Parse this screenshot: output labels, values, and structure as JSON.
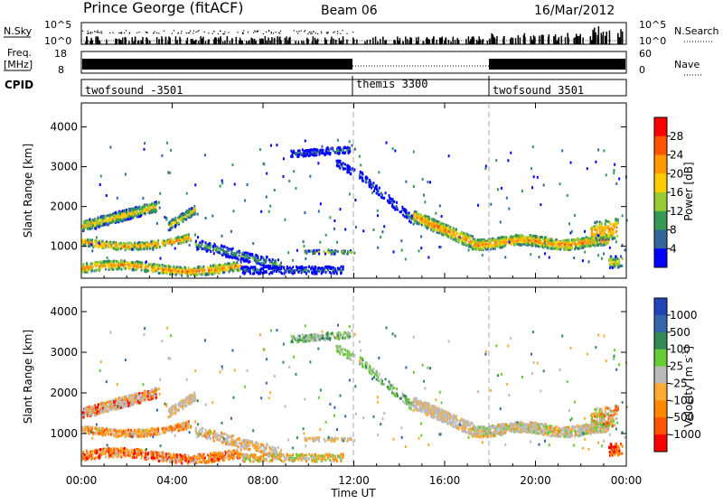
{
  "header": {
    "title": "Prince George (fitACF)",
    "beam": "Beam 06",
    "date": "16/Mar/2012"
  },
  "panels": {
    "nsky": {
      "left_label": "N.Sky",
      "right_label": "N.Search",
      "tick_top": "10^5",
      "tick_bottom": "10^0"
    },
    "freq": {
      "left_label_1": "Freq.",
      "left_label_2": "[MHz]",
      "tick_top": "18",
      "tick_bottom": "8",
      "right_label": "Nave",
      "right_tick_top": "60",
      "right_tick_bottom": "0"
    },
    "cpid": {
      "label": "CPID",
      "segments": [
        "twofsound -3501",
        "themis 3300",
        "twofsound 3501"
      ]
    }
  },
  "chart_data": [
    {
      "type": "heatmap",
      "name": "power",
      "ylabel": "Slant Range [km]",
      "xlabel": "Time UT",
      "x_ticks": [
        "00:00",
        "04:00",
        "08:00",
        "12:00",
        "16:00",
        "20:00",
        "00:00"
      ],
      "y_ticks": [
        1000,
        2000,
        3000,
        4000
      ],
      "ylim": [
        200,
        4600
      ],
      "xlim_hours": [
        0,
        24
      ],
      "colorbar": {
        "label": "Power [dB]",
        "ticks": [
          "28",
          "24",
          "20",
          "16",
          "12",
          "8",
          "4"
        ],
        "colors": [
          "#ff0000",
          "#ff5500",
          "#ff9900",
          "#ffcc00",
          "#99cc33",
          "#339955",
          "#336699",
          "#0000ff"
        ]
      }
    },
    {
      "type": "heatmap",
      "name": "velocity",
      "ylabel": "Slant Range [km]",
      "xlabel": "Time UT",
      "x_ticks": [
        "00:00",
        "04:00",
        "08:00",
        "12:00",
        "16:00",
        "20:00",
        "00:00"
      ],
      "y_ticks": [
        1000,
        2000,
        3000,
        4000
      ],
      "ylim": [
        200,
        4600
      ],
      "xlim_hours": [
        0,
        24
      ],
      "colorbar": {
        "label": "Velocity [m s^-1]",
        "ticks": [
          "1000",
          "500",
          "100",
          "25",
          "-25",
          "-100",
          "-500",
          "-1000"
        ],
        "colors": [
          "#2244bb",
          "#3366aa",
          "#338855",
          "#66cc33",
          "#bbbbbb",
          "#ffaa33",
          "#ff8800",
          "#ff5500",
          "#ff0000"
        ]
      }
    }
  ],
  "xaxis_label": "Time UT"
}
